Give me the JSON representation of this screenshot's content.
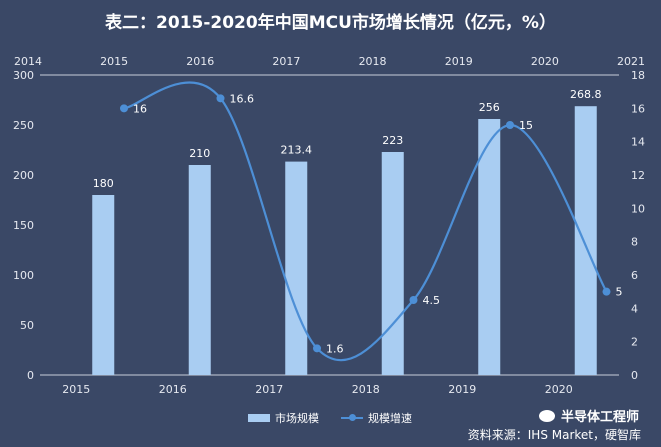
{
  "chart_data": {
    "type": "bar+line",
    "title": "表二：2015-2020年中国MCU市场增长情况（亿元，%）",
    "categories": [
      "2015",
      "2016",
      "2017",
      "2018",
      "2019",
      "2020"
    ],
    "series": [
      {
        "name": "市场规模",
        "type": "bar",
        "values": [
          180,
          210,
          213.4,
          223,
          256,
          268.8
        ],
        "labels": [
          "180",
          "210",
          "213.4",
          "223",
          "256",
          "268.8"
        ],
        "axis": "left"
      },
      {
        "name": "规模增速",
        "type": "line",
        "values": [
          16,
          16.6,
          1.6,
          4.5,
          15,
          5
        ],
        "labels": [
          "16",
          "16.6",
          "1.6",
          "4.5",
          "15",
          "5"
        ],
        "axis": "right"
      }
    ],
    "left_axis": {
      "min": 0,
      "max": 300,
      "ticks": [
        "0",
        "50",
        "100",
        "150",
        "200",
        "250",
        "300"
      ]
    },
    "right_axis": {
      "min": 0,
      "max": 18,
      "ticks": [
        "0",
        "2",
        "4",
        "6",
        "8",
        "10",
        "12",
        "14",
        "16",
        "18"
      ]
    },
    "top_axis": {
      "ticks": [
        "2014",
        "2015",
        "2016",
        "2017",
        "2018",
        "2019",
        "2020",
        "2021"
      ]
    },
    "legend": "bottom"
  },
  "colors": {
    "background": "#3a4866",
    "bar": "#a9cdf2",
    "line": "#4d8fd6"
  },
  "source": "资料来源：IHS Market，硬智库",
  "brand": "半导体工程师",
  "brand_icon": "wechat-icon"
}
